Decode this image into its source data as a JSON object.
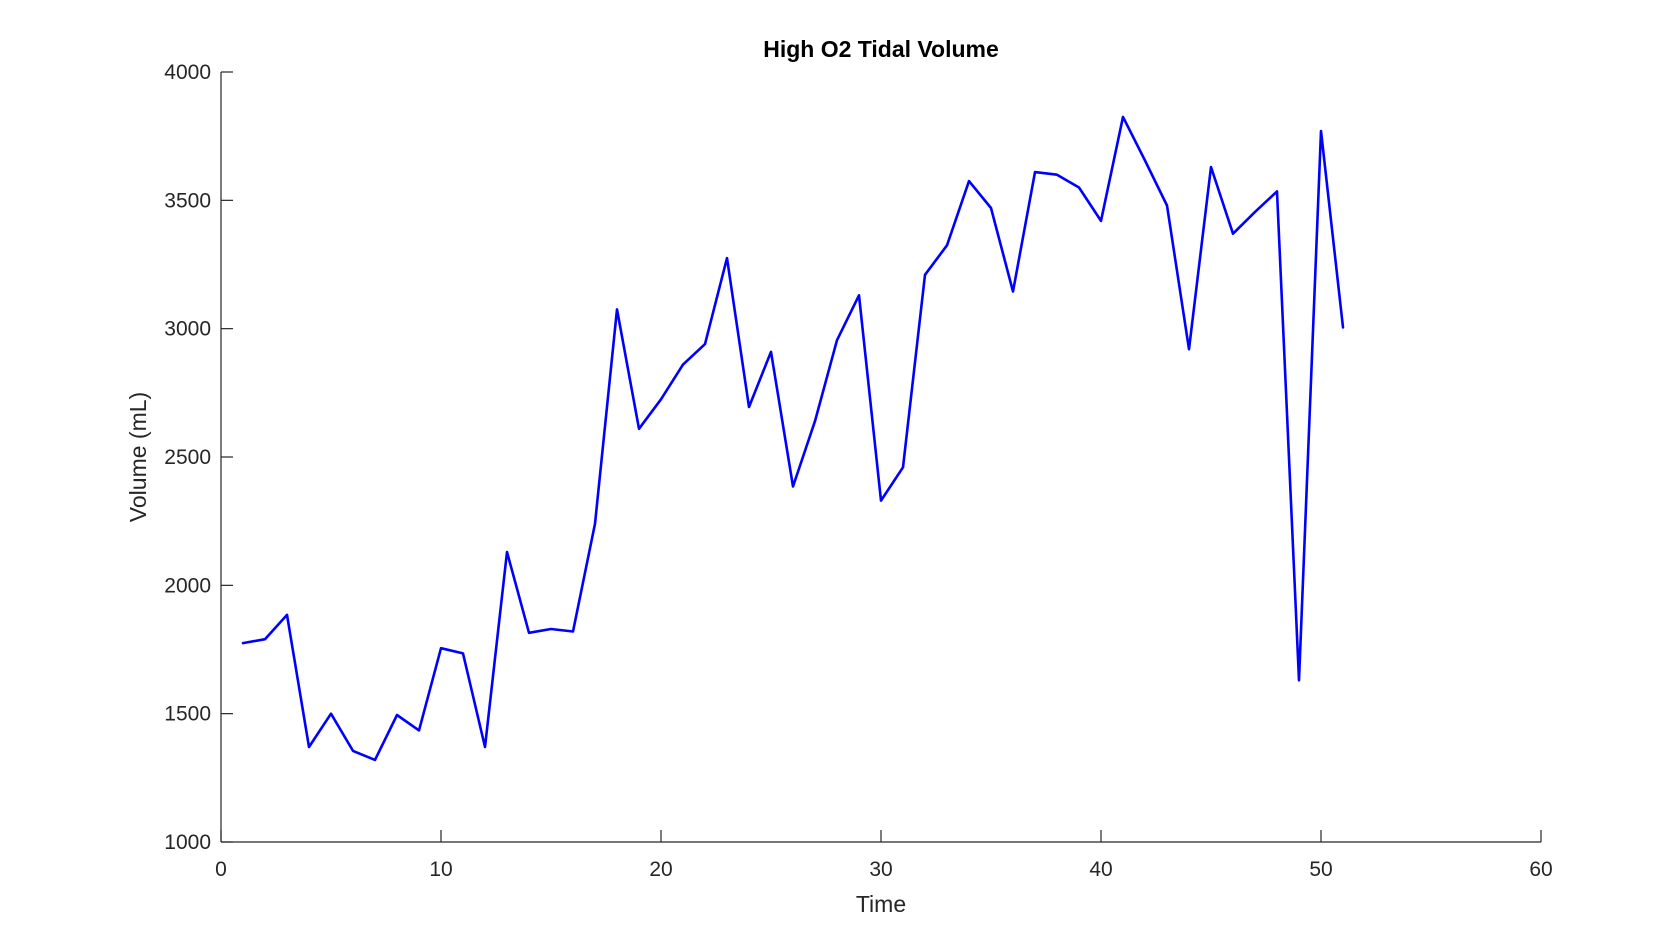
{
  "chart_data": {
    "type": "line",
    "title": "High O2 Tidal Volume",
    "xlabel": "Time",
    "ylabel": "Volume (mL)",
    "xlim": [
      0,
      60
    ],
    "ylim": [
      1000,
      4000
    ],
    "xticks": [
      0,
      10,
      20,
      30,
      40,
      50,
      60
    ],
    "yticks": [
      1000,
      1500,
      2000,
      2500,
      3000,
      3500,
      4000
    ],
    "grid": false,
    "line_color": "#0000ff",
    "axis_color": "#262626",
    "series": [
      {
        "x": [
          1,
          2,
          3,
          4,
          5,
          6,
          7,
          8,
          9,
          10,
          11,
          12,
          13,
          14,
          15,
          16,
          17,
          18,
          19,
          20,
          21,
          22,
          23,
          24,
          25,
          26,
          27,
          28,
          29,
          30,
          31,
          32,
          33,
          34,
          35,
          36,
          37,
          38,
          39,
          40,
          41,
          42,
          43,
          44,
          45,
          46,
          47,
          48,
          49,
          50,
          51
        ],
        "values": [
          1775,
          1790,
          1885,
          1370,
          1500,
          1355,
          1320,
          1495,
          1435,
          1755,
          1735,
          1370,
          2130,
          1815,
          1830,
          1820,
          2240,
          3075,
          2610,
          2725,
          2860,
          2940,
          3275,
          2695,
          2910,
          2385,
          2640,
          2955,
          3130,
          2330,
          2460,
          3210,
          3325,
          3575,
          3470,
          3145,
          3610,
          3600,
          3550,
          3420,
          3825,
          3655,
          3480,
          2920,
          3630,
          3370,
          3455,
          3535,
          1630,
          3770,
          3005
        ]
      }
    ]
  }
}
